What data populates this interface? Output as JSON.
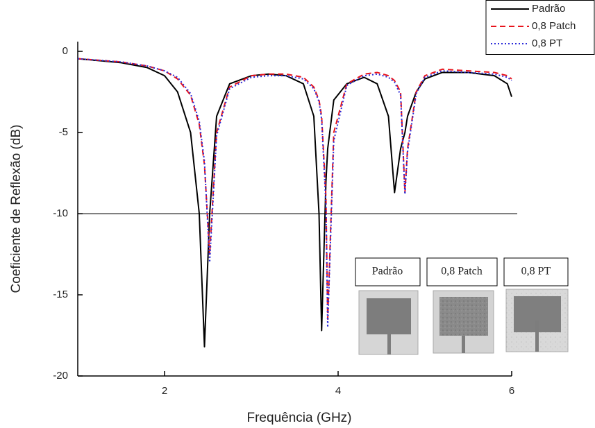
{
  "chart_data": {
    "type": "line",
    "x_label": "Frequência (GHz)",
    "y_label": "Coeficiente de Reflexão (dB)",
    "x": [
      1,
      1.5,
      1.8,
      2,
      2.15,
      2.3,
      2.4,
      2.46,
      2.52,
      2.6,
      2.75,
      3,
      3.2,
      3.4,
      3.6,
      3.72,
      3.78,
      3.81,
      3.86,
      3.88,
      3.95,
      4.1,
      4.3,
      4.45,
      4.58,
      4.65,
      4.72,
      4.77,
      4.8,
      4.9,
      5,
      5.2,
      5.5,
      5.8,
      5.95,
      6
    ],
    "series": [
      {
        "name": "Padrão",
        "color": "#000000",
        "dash": "solid",
        "values": [
          -0.45,
          -0.7,
          -1.0,
          -1.5,
          -2.5,
          -5,
          -10,
          -18.2,
          -10,
          -4,
          -2,
          -1.5,
          -1.4,
          -1.5,
          -2,
          -4,
          -10,
          -17.2,
          -8,
          -6,
          -3,
          -2,
          -1.6,
          -2,
          -4,
          -8.7,
          -6,
          -5,
          -4,
          -2.5,
          -1.7,
          -1.3,
          -1.3,
          -1.5,
          -2,
          -2.8
        ]
      },
      {
        "name": "0,8 Patch",
        "color": "#e8141c",
        "dash": "dashed",
        "values": [
          -0.45,
          -0.65,
          -0.9,
          -1.2,
          -1.7,
          -2.7,
          -4.5,
          -7,
          -12.5,
          -5,
          -2.2,
          -1.5,
          -1.4,
          -1.4,
          -1.6,
          -2.2,
          -3,
          -4,
          -9,
          -16.5,
          -5,
          -2,
          -1.4,
          -1.3,
          -1.5,
          -1.8,
          -2.5,
          -8.7,
          -6,
          -2.5,
          -1.5,
          -1.1,
          -1.2,
          -1.3,
          -1.5,
          -1.7
        ]
      },
      {
        "name": "0,8 PT",
        "color": "#2b2bd9",
        "dash": "dotted",
        "values": [
          -0.45,
          -0.65,
          -0.9,
          -1.2,
          -1.6,
          -2.6,
          -4.3,
          -6.8,
          -13,
          -5.2,
          -2.3,
          -1.6,
          -1.5,
          -1.5,
          -1.7,
          -2.3,
          -3.1,
          -4.2,
          -9.5,
          -17,
          -5.5,
          -2.1,
          -1.5,
          -1.4,
          -1.6,
          -1.9,
          -2.7,
          -8.8,
          -6.2,
          -2.6,
          -1.6,
          -1.2,
          -1.3,
          -1.4,
          -1.6,
          -1.8
        ]
      }
    ],
    "reference_line": -10,
    "xlim": [
      1,
      6
    ],
    "ylim": [
      -20,
      0.6
    ],
    "xticks": [
      2,
      4,
      6
    ],
    "yticks": [
      -20,
      -15,
      -10,
      -5,
      0
    ],
    "legend": "top-right",
    "inset_labels": [
      "Padrão",
      "0,8 Patch",
      "0,8 PT"
    ]
  }
}
